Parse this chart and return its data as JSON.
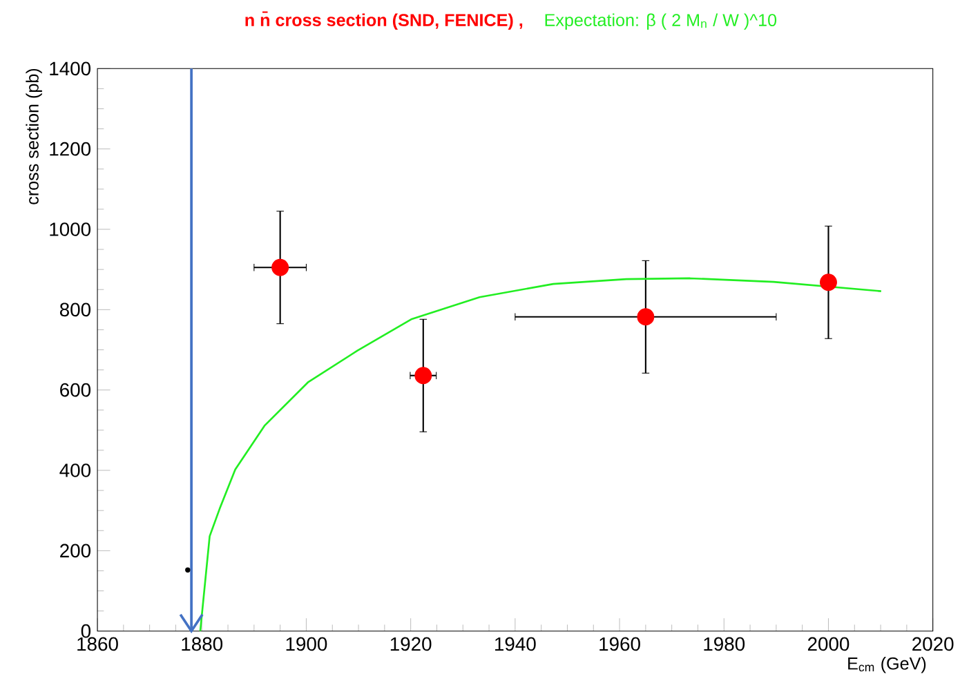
{
  "chart_data": {
    "type": "scatter",
    "title": "n n̄ cross section (SND, FENICE) ,",
    "subtitle": "Expectation:    β ( 2 M$_{n}$ / W )^10",
    "xlabel": "E$_{cm}$ (GeV)",
    "ylabel": "cross section (pb)",
    "xlim": [
      1860,
      2020
    ],
    "xticks": [
      1860,
      1880,
      1900,
      1920,
      1940,
      1960,
      1980,
      2000,
      2020
    ],
    "ylim": [
      0,
      1400
    ],
    "yticks": [
      0,
      200,
      400,
      600,
      800,
      1000,
      1200,
      1400
    ],
    "grid": false,
    "series": [
      {
        "color": "#ff0000",
        "marker": "circle",
        "x": [
          1895,
          1922.4,
          1965,
          2000
        ],
        "values": [
          905,
          636,
          782,
          868
        ],
        "errors": [
          140,
          140,
          140,
          140
        ],
        "xerrors": [
          5,
          2.5,
          25,
          0
        ]
      },
      {
        "color": "#000000",
        "marker": "circle",
        "x": [
          1877.3
        ],
        "values": [
          152
        ]
      },
      {
        "type": "line",
        "color": "#22ee22",
        "marker": "none",
        "x": [
          1879.7,
          1881.5,
          1883.4,
          1886.4,
          1892,
          1900.4,
          1909.8,
          1920.1,
          1933.2,
          1947.3,
          1961.3,
          1973.5,
          1989.5,
          2000,
          2010.1
        ],
        "values": [
          0,
          236,
          304,
          402,
          511,
          620,
          698,
          776,
          831,
          864,
          876,
          878,
          869,
          null,
          846
        ]
      }
    ],
    "ref_lines": [
      {
        "axis": "x",
        "value": 1878,
        "color": "#4472c4"
      }
    ]
  }
}
